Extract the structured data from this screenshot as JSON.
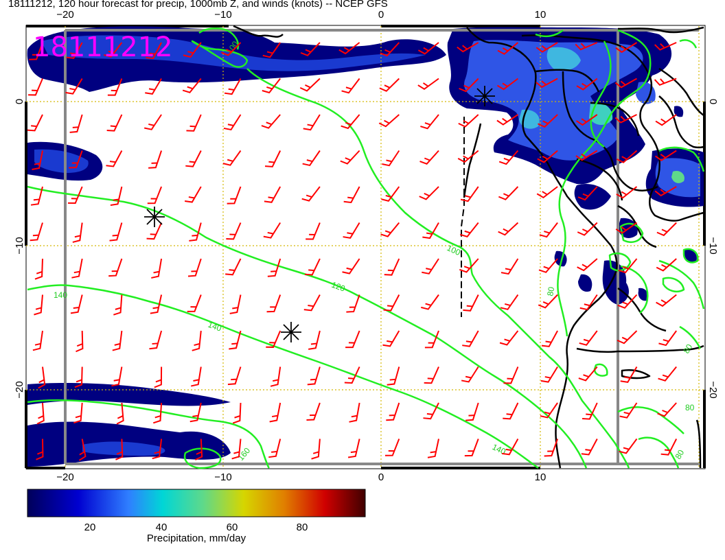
{
  "title": "18111212, 120 hour forecast for precip, 1000mb Z, and winds (knots) -- NCEP GFS",
  "stamp": "18111212",
  "axes": {
    "lon_ticks": [
      "−20",
      "−10",
      "0",
      "10"
    ],
    "lat_ticks": [
      "0",
      "−10",
      "−20"
    ]
  },
  "contours": {
    "color": "#22ee22",
    "labels": [
      "100",
      "100",
      "120",
      "140",
      "140",
      "160",
      "80",
      "80",
      "80",
      "80",
      "140"
    ]
  },
  "colorbar": {
    "ticks": [
      "20",
      "40",
      "60",
      "80"
    ],
    "label": "Precipitation, mm/day",
    "colors": [
      "#00005a",
      "#0000d0",
      "#2f7fff",
      "#00d6d6",
      "#5fd98a",
      "#d6d600",
      "#e07f00",
      "#d00000",
      "#400000"
    ]
  },
  "colors": {
    "precip_core": "#000080",
    "precip_mid": "#2040d0",
    "wind_barb": "#ff0000",
    "grid": "#d4b800",
    "coast": "#000000",
    "stamp": "#ff00ff"
  },
  "markers": [
    "low-pressure-center",
    "low-pressure-center",
    "low-pressure-center"
  ]
}
